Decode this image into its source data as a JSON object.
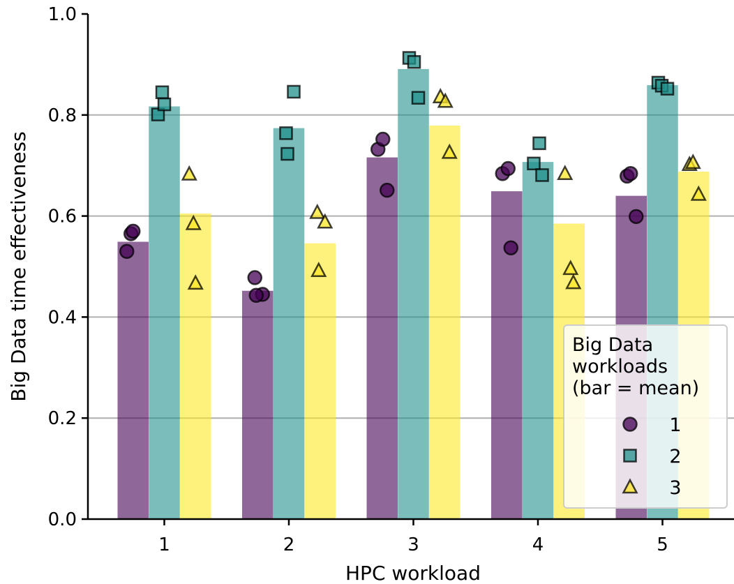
{
  "chart_data": {
    "type": "bar",
    "xlabel": "HPC workload",
    "ylabel": "Big Data time effectiveness",
    "ylim": [
      0,
      1.0
    ],
    "yticks": [
      "0.0",
      "0.2",
      "0.4",
      "0.6",
      "0.8",
      "1.0"
    ],
    "categories": [
      "1",
      "2",
      "3",
      "4",
      "5"
    ],
    "grid": "horizontal",
    "series": [
      {
        "name": "1",
        "color": "#440154",
        "marker": "circle",
        "values": [
          0.549,
          0.452,
          0.716,
          0.649,
          0.64
        ],
        "points": [
          [
            0.53,
            0.565,
            0.57
          ],
          [
            0.478,
            0.445,
            0.443
          ],
          [
            0.732,
            0.752,
            0.651
          ],
          [
            0.684,
            0.694,
            0.537
          ],
          [
            0.679,
            0.684,
            0.599
          ]
        ]
      },
      {
        "name": "2",
        "color": "#21918c",
        "marker": "square",
        "values": [
          0.817,
          0.774,
          0.891,
          0.707,
          0.859
        ],
        "points": [
          [
            0.801,
            0.845,
            0.821
          ],
          [
            0.764,
            0.846,
            0.723
          ],
          [
            0.913,
            0.905,
            0.834
          ],
          [
            0.704,
            0.744,
            0.681
          ],
          [
            0.864,
            0.858,
            0.852
          ]
        ]
      },
      {
        "name": "3",
        "color": "#fde725",
        "marker": "triangle",
        "values": [
          0.605,
          0.546,
          0.779,
          0.585,
          0.688
        ],
        "points": [
          [
            0.683,
            0.585,
            0.467
          ],
          [
            0.607,
            0.588,
            0.492
          ],
          [
            0.836,
            0.827,
            0.726
          ],
          [
            0.684,
            0.496,
            0.468
          ],
          [
            0.702,
            0.706,
            0.643
          ]
        ]
      }
    ],
    "legend": {
      "title_lines": [
        "Big Data",
        "workloads",
        "(bar = mean)"
      ],
      "placement": "lower-right"
    }
  }
}
